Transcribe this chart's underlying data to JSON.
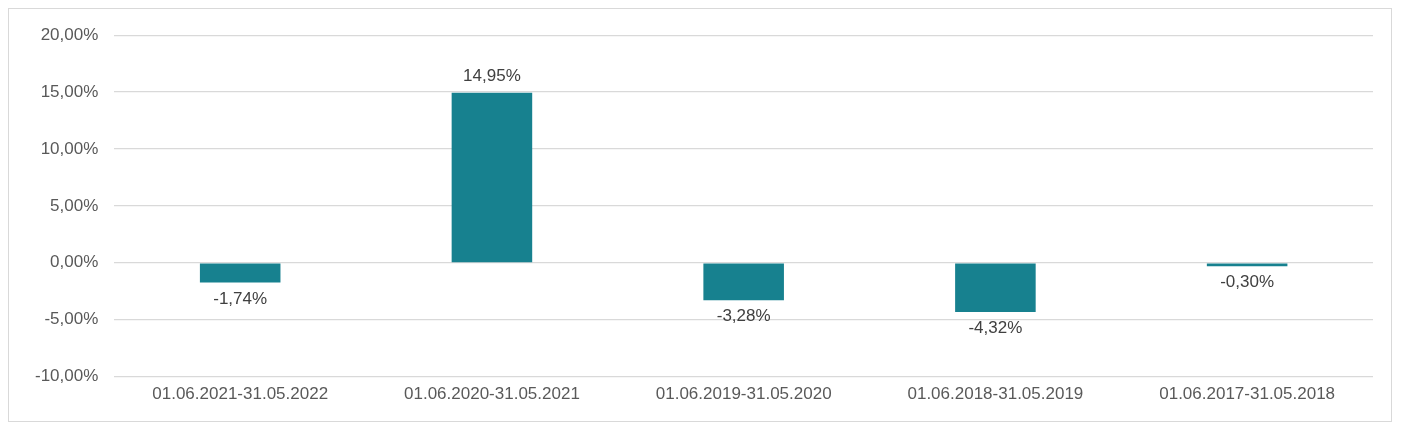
{
  "chart_data": {
    "type": "bar",
    "categories": [
      "01.06.2021-31.05.2022",
      "01.06.2020-31.05.2021",
      "01.06.2019-31.05.2020",
      "01.06.2018-31.05.2019",
      "01.06.2017-31.05.2018"
    ],
    "values": [
      -1.74,
      14.95,
      -3.28,
      -4.32,
      -0.3
    ],
    "value_labels": [
      "-1,74%",
      "14,95%",
      "-3,28%",
      "-4,32%",
      "-0,30%"
    ],
    "color": "#17818f",
    "ylim": [
      -10,
      20
    ],
    "yticks": [
      {
        "value": -10,
        "label": "-10,00%"
      },
      {
        "value": -5,
        "label": "-5,00%"
      },
      {
        "value": 0,
        "label": "0,00%"
      },
      {
        "value": 5,
        "label": "5,00%"
      },
      {
        "value": 10,
        "label": "10,00%"
      },
      {
        "value": 15,
        "label": "15,00%"
      },
      {
        "value": 20,
        "label": "20,00%"
      }
    ],
    "grid": "y",
    "legend": false
  }
}
